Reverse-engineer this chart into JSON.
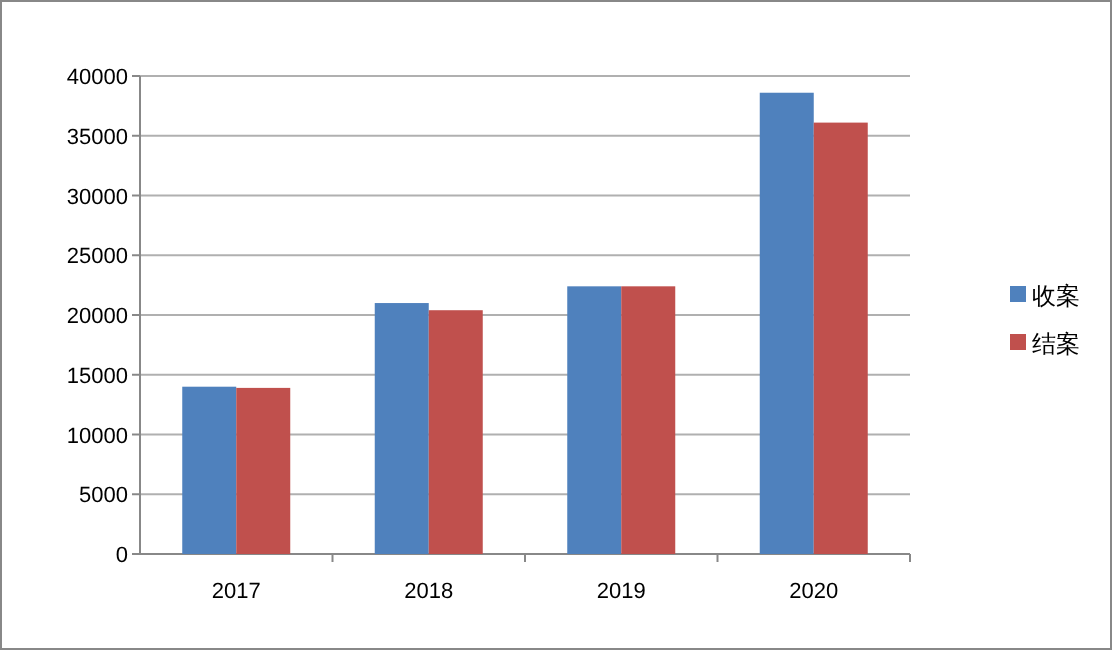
{
  "chart_data": {
    "type": "bar",
    "categories": [
      "2017",
      "2018",
      "2019",
      "2020"
    ],
    "series": [
      {
        "name": "收案",
        "color": "#4f81bd",
        "values": [
          14000,
          21000,
          22400,
          38600
        ]
      },
      {
        "name": "结案",
        "color": "#c0504d",
        "values": [
          13900,
          20400,
          22400,
          36100
        ]
      }
    ],
    "ylim": [
      0,
      40000
    ],
    "yticks": [
      0,
      5000,
      10000,
      15000,
      20000,
      25000,
      30000,
      35000,
      40000
    ],
    "grid": "y",
    "legend": "right"
  }
}
